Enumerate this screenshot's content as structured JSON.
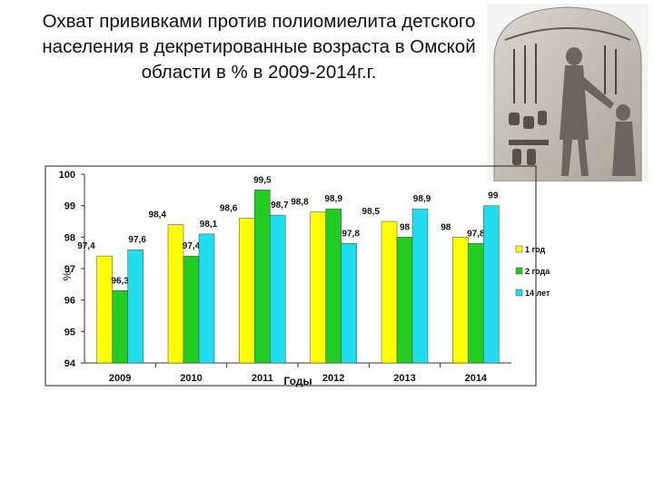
{
  "title": "Охват прививками против полиомиелита детского населения в декретированные возраста  в Омской области в %  в 2009-2014г.г.",
  "image": {
    "icon": "egyptian-stele-relief-image"
  },
  "chart_data": {
    "type": "bar",
    "title": "",
    "xlabel": "Годы",
    "ylabel": "%",
    "ylim": [
      94,
      100
    ],
    "yticks": [
      "100",
      "99",
      "98",
      "97",
      "96",
      "95",
      "94"
    ],
    "grid": false,
    "legend_position": "right",
    "categories": [
      "2009",
      "2010",
      "2011",
      "2012",
      "2013",
      "2014"
    ],
    "series": [
      {
        "name": "1 год",
        "color": "#ffff00",
        "values": [
          97.4,
          98.4,
          98.6,
          98.8,
          98.5,
          98
        ],
        "labels": [
          "97,4",
          "98,4",
          "98,6",
          "98,8",
          "98,5",
          "98"
        ]
      },
      {
        "name": "2 года",
        "color": "#22cc22",
        "values": [
          96.3,
          97.4,
          99.5,
          98.9,
          98,
          97.8
        ],
        "labels": [
          "96,3",
          "97,4",
          "99,5",
          "98,9",
          "98",
          "97,8"
        ]
      },
      {
        "name": "14 лет",
        "color": "#22ddee",
        "values": [
          97.6,
          98.1,
          98.7,
          97.8,
          98.9,
          99
        ],
        "labels": [
          "97,6",
          "98,1",
          "98,7",
          "97,8",
          "98,9",
          "99"
        ]
      }
    ]
  }
}
